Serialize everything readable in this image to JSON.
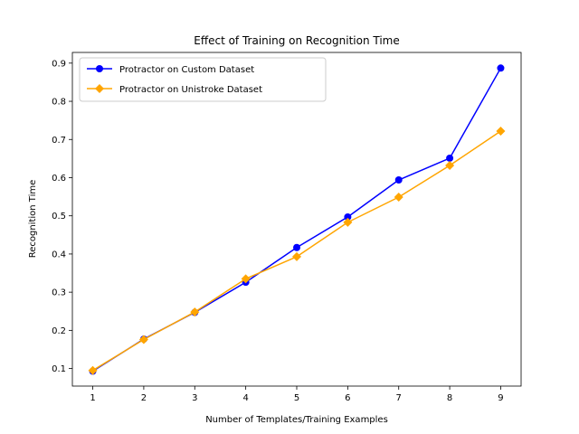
{
  "chart_data": {
    "type": "line",
    "title": "Effect of Training on Recognition Time",
    "xlabel": "Number of Templates/Training Examples",
    "ylabel": "Recognition Time",
    "x": [
      1,
      2,
      3,
      4,
      5,
      6,
      7,
      8,
      9
    ],
    "xlim": [
      0.6,
      9.4
    ],
    "ylim": [
      0.054,
      0.928
    ],
    "xticks": [
      "1",
      "2",
      "3",
      "4",
      "5",
      "6",
      "7",
      "8",
      "9"
    ],
    "yticks": [
      "0.1",
      "0.2",
      "0.3",
      "0.4",
      "0.5",
      "0.6",
      "0.7",
      "0.8",
      "0.9"
    ],
    "grid": false,
    "legend_position": "top-left",
    "series": [
      {
        "name": "Protractor on Custom Dataset",
        "color": "#0000ff",
        "marker": "circle",
        "values": [
          0.093,
          0.177,
          0.247,
          0.326,
          0.417,
          0.497,
          0.594,
          0.651,
          0.887
        ]
      },
      {
        "name": "Protractor on Unistroke Dataset",
        "color": "#ffa500",
        "marker": "diamond",
        "values": [
          0.095,
          0.176,
          0.248,
          0.335,
          0.393,
          0.483,
          0.549,
          0.632,
          0.722
        ]
      }
    ]
  }
}
